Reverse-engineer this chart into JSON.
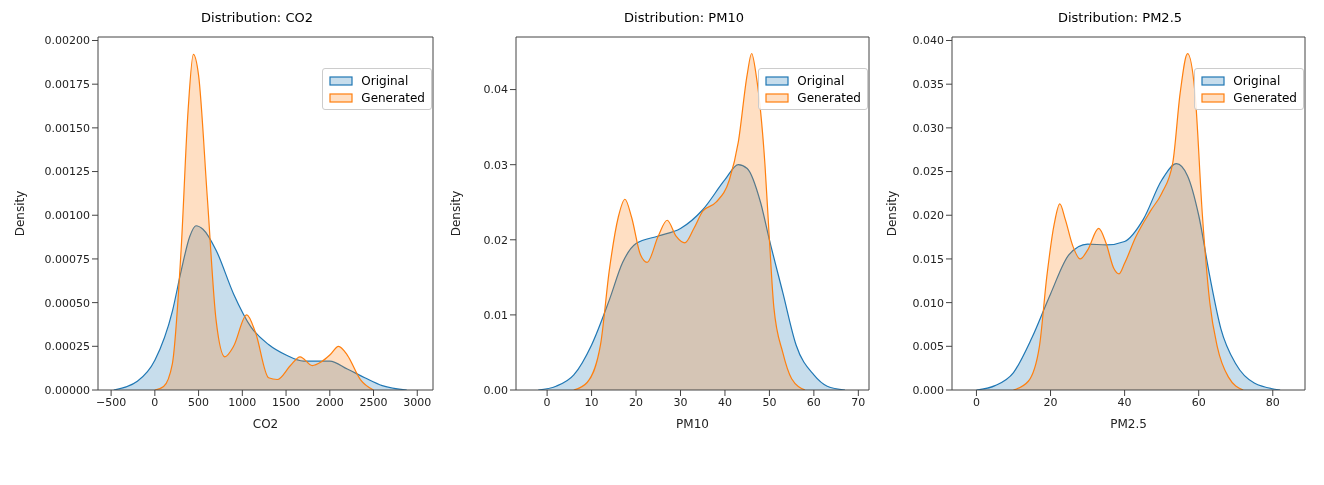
{
  "chart_data": [
    {
      "type": "area",
      "title": "Distribution: CO2",
      "xlabel": "CO2",
      "ylabel": "Density",
      "legend": "top right",
      "marker": "none",
      "xlim": [
        -650,
        3180
      ],
      "ylim": [
        0,
        0.00202
      ],
      "xticks": [
        -500,
        0,
        500,
        1000,
        1500,
        2000,
        2500,
        3000
      ],
      "yticks": [
        {
          "value": 0,
          "label": "0.00000"
        },
        {
          "value": 0.00025,
          "label": "0.00025"
        },
        {
          "value": 0.0005,
          "label": "0.00050"
        },
        {
          "value": 0.00075,
          "label": "0.00075"
        },
        {
          "value": 0.001,
          "label": "0.00100"
        },
        {
          "value": 0.00125,
          "label": "0.00125"
        },
        {
          "value": 0.0015,
          "label": "0.00150"
        },
        {
          "value": 0.00175,
          "label": "0.00175"
        },
        {
          "value": 0.002,
          "label": "0.00200"
        }
      ],
      "series": [
        {
          "name": "Original",
          "color": "#1f77b4",
          "x": [
            -470,
            -200,
            0,
            200,
            300,
            400,
            470,
            550,
            700,
            900,
            1100,
            1300,
            1500,
            1700,
            1900,
            2000,
            2200,
            2400,
            2600,
            2880
          ],
          "values": [
            0,
            5e-05,
            0.00017,
            0.00045,
            0.00068,
            0.00088,
            0.00094,
            0.00092,
            0.0008,
            0.00055,
            0.00036,
            0.00026,
            0.0002,
            0.000165,
            0.000165,
            0.000165,
            0.00012,
            7e-05,
            2.5e-05,
            0
          ]
        },
        {
          "name": "Generated",
          "color": "#ff7f0e",
          "x": [
            0,
            100,
            200,
            300,
            380,
            440,
            500,
            600,
            700,
            800,
            900,
            1050,
            1150,
            1300,
            1400,
            1550,
            1660,
            1800,
            1900,
            2000,
            2100,
            2200,
            2350,
            2500
          ],
          "values": [
            0,
            2e-05,
            0.00015,
            0.0008,
            0.0016,
            0.00192,
            0.0018,
            0.0011,
            0.0004,
            0.00019,
            0.00025,
            0.00043,
            0.00033,
            7e-05,
            6e-05,
            0.00014,
            0.00019,
            0.00014,
            0.00016,
            0.0002,
            0.00025,
            0.0002,
            6e-05,
            0
          ]
        }
      ]
    },
    {
      "type": "area",
      "title": "Distribution: PM10",
      "xlabel": "PM10",
      "ylabel": "Density",
      "legend": "top right",
      "marker": "none",
      "xlim": [
        -7,
        72.4
      ],
      "ylim": [
        0,
        0.047
      ],
      "xticks": [
        0,
        10,
        20,
        30,
        40,
        50,
        60,
        70
      ],
      "yticks": [
        {
          "value": 0,
          "label": "0.00"
        },
        0.01,
        0.02,
        0.03,
        0.04
      ],
      "series": [
        {
          "name": "Original",
          "color": "#1f77b4",
          "x": [
            -2,
            2,
            6,
            10,
            14,
            17,
            20,
            25,
            30,
            35,
            40,
            43,
            45,
            48,
            50,
            53,
            56,
            60,
            63,
            67
          ],
          "values": [
            0,
            0.0005,
            0.002,
            0.006,
            0.012,
            0.017,
            0.0195,
            0.0205,
            0.0215,
            0.024,
            0.028,
            0.03,
            0.0295,
            0.025,
            0.02,
            0.013,
            0.006,
            0.002,
            0.0005,
            0
          ]
        },
        {
          "name": "Generated",
          "color": "#ff7f0e",
          "x": [
            6,
            9,
            12,
            14,
            16,
            17.5,
            19,
            21,
            22.5,
            25,
            27,
            29,
            31,
            33,
            35,
            38,
            41,
            43,
            45,
            46,
            47,
            49,
            50,
            51,
            53,
            55,
            58
          ],
          "values": [
            0,
            0.001,
            0.006,
            0.016,
            0.023,
            0.0254,
            0.023,
            0.018,
            0.017,
            0.0205,
            0.0226,
            0.0205,
            0.0196,
            0.0215,
            0.0238,
            0.025,
            0.028,
            0.033,
            0.042,
            0.0448,
            0.042,
            0.03,
            0.02,
            0.011,
            0.005,
            0.0015,
            0
          ]
        }
      ]
    },
    {
      "type": "area",
      "title": "Distribution: PM2.5",
      "xlabel": "PM2.5",
      "ylabel": "Density",
      "legend": "top right",
      "marker": "none",
      "xlim": [
        -6.6,
        88.7
      ],
      "ylim": [
        0,
        0.0404
      ],
      "xticks": [
        0,
        20,
        40,
        60,
        80
      ],
      "yticks": [
        {
          "value": 0,
          "label": "0.000"
        },
        {
          "value": 0.005,
          "label": "0.005"
        },
        {
          "value": 0.01,
          "label": "0.010"
        },
        {
          "value": 0.015,
          "label": "0.015"
        },
        {
          "value": 0.02,
          "label": "0.020"
        },
        {
          "value": 0.025,
          "label": "0.025"
        },
        {
          "value": 0.03,
          "label": "0.030"
        },
        {
          "value": 0.035,
          "label": "0.035"
        },
        {
          "value": 0.04,
          "label": "0.040"
        }
      ],
      "series": [
        {
          "name": "Original",
          "color": "#1f77b4",
          "x": [
            0,
            5,
            10,
            15,
            20,
            25,
            30,
            35,
            40,
            45,
            50,
            54,
            57,
            60,
            63,
            66,
            70,
            75,
            82
          ],
          "values": [
            0,
            0.0005,
            0.002,
            0.006,
            0.011,
            0.0155,
            0.0167,
            0.0166,
            0.017,
            0.0195,
            0.024,
            0.0259,
            0.0245,
            0.02,
            0.013,
            0.007,
            0.003,
            0.0008,
            0
          ]
        },
        {
          "name": "Generated",
          "color": "#ff7f0e",
          "x": [
            10,
            14,
            17,
            19,
            21,
            22.5,
            24,
            26,
            28,
            30,
            33,
            35,
            37,
            38.5,
            40,
            43,
            47,
            50,
            53,
            55,
            57,
            59,
            61,
            63,
            65,
            68,
            72
          ],
          "values": [
            0,
            0.001,
            0.005,
            0.013,
            0.019,
            0.0213,
            0.0195,
            0.0165,
            0.015,
            0.016,
            0.0185,
            0.0168,
            0.014,
            0.0133,
            0.0145,
            0.0175,
            0.0205,
            0.0225,
            0.026,
            0.034,
            0.0385,
            0.034,
            0.02,
            0.01,
            0.005,
            0.0015,
            0
          ]
        }
      ]
    }
  ]
}
